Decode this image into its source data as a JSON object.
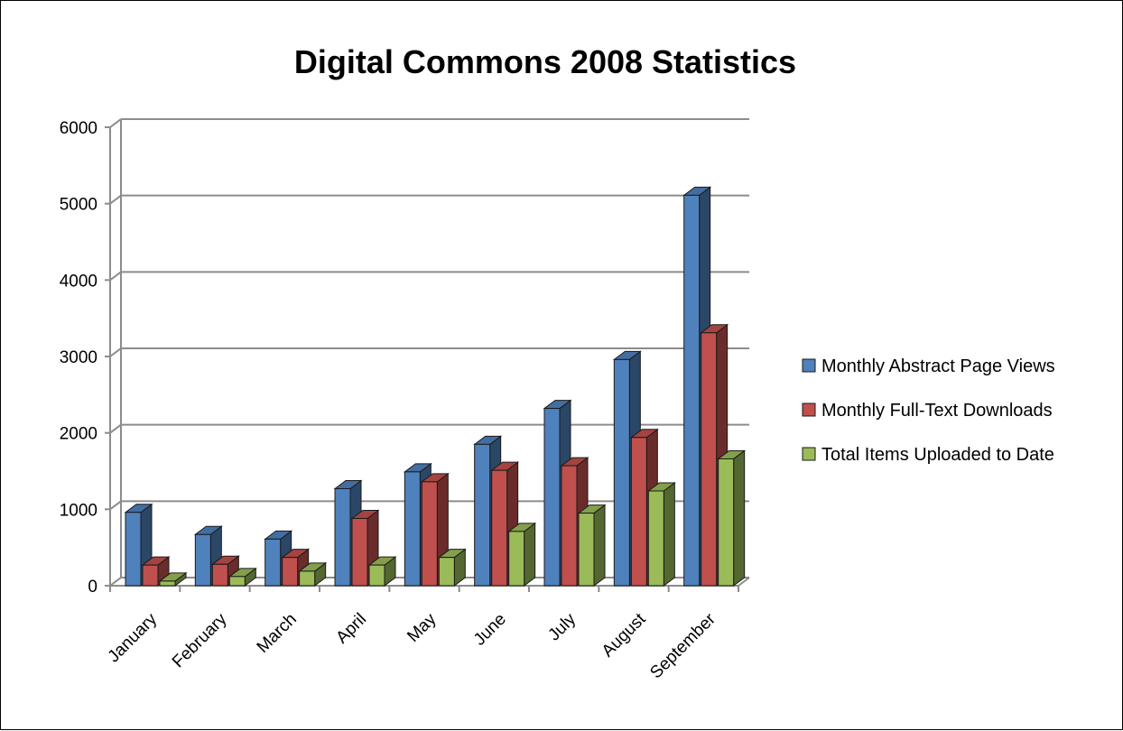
{
  "chart_data": {
    "type": "bar",
    "title": "Digital Commons 2008 Statistics",
    "categories": [
      "January",
      "February",
      "March",
      "April",
      "May",
      "June",
      "July",
      "August",
      "September"
    ],
    "series": [
      {
        "name": "Monthly Abstract Page Views",
        "color": "#4F81BD",
        "values": [
          960,
          670,
          610,
          1270,
          1490,
          1850,
          2320,
          2960,
          5110
        ]
      },
      {
        "name": "Monthly Full-Text Downloads",
        "color": "#C0504D",
        "values": [
          270,
          280,
          370,
          880,
          1360,
          1510,
          1570,
          1940,
          3310
        ]
      },
      {
        "name": "Total Items Uploaded to Date",
        "color": "#9BBB59",
        "values": [
          60,
          120,
          190,
          270,
          370,
          710,
          950,
          1240,
          1660
        ]
      }
    ],
    "ylim": [
      0,
      6000
    ],
    "yticks": [
      0,
      1000,
      2000,
      3000,
      4000,
      5000,
      6000
    ],
    "grid": true,
    "legend_position": "right",
    "style": "3d-clustered-column"
  }
}
